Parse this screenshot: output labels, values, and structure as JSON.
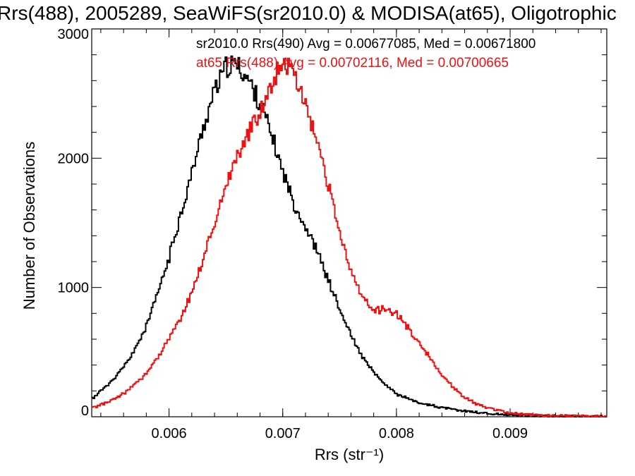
{
  "chart_data": {
    "type": "line",
    "title": "Rrs(488), 2005289, SeaWiFS(sr2010.0) & MODISA(at65), Oligotrophic",
    "xlabel": "Rrs (str⁻¹)",
    "ylabel": "Number of Observations",
    "xlim": [
      0.00532,
      0.00985
    ],
    "ylim": [
      0,
      3000
    ],
    "x_ticks": [
      0.006,
      0.007,
      0.008,
      0.009
    ],
    "x_tick_labels": [
      "0.006",
      "0.007",
      "0.008",
      "0.009"
    ],
    "y_ticks": [
      0,
      1000,
      2000,
      3000
    ],
    "y_tick_labels": [
      "0",
      "1000",
      "2000",
      "3000"
    ],
    "grid": false,
    "legend_position": "top-right",
    "x": [
      0.0053,
      0.0054,
      0.0055,
      0.0056,
      0.0057,
      0.0058,
      0.0059,
      0.006,
      0.0061,
      0.0062,
      0.0063,
      0.0064,
      0.0065,
      0.0066,
      0.0067,
      0.0068,
      0.0069,
      0.007,
      0.0071,
      0.0072,
      0.0073,
      0.0074,
      0.0075,
      0.0076,
      0.0077,
      0.0078,
      0.0079,
      0.008,
      0.0081,
      0.0082,
      0.0083,
      0.0084,
      0.0085,
      0.0086,
      0.0087,
      0.0088,
      0.0089,
      0.009,
      0.0091,
      0.0092,
      0.0093,
      0.0094,
      0.0095,
      0.0096,
      0.0097,
      0.0098
    ],
    "series": [
      {
        "name": "sr2010.0 Rrs(490) Avg = 0.00677085, Med = 0.00671800",
        "color": "#000000",
        "values": [
          120,
          200,
          280,
          380,
          520,
          700,
          950,
          1230,
          1560,
          1880,
          2230,
          2520,
          2700,
          2730,
          2600,
          2430,
          2180,
          1900,
          1650,
          1470,
          1290,
          1060,
          830,
          630,
          460,
          340,
          250,
          180,
          140,
          110,
          90,
          70,
          55,
          45,
          35,
          25,
          20,
          15,
          12,
          10,
          8,
          6,
          5,
          4,
          3,
          2
        ]
      },
      {
        "name": "at65 Rrs(488) Avg = 0.00702116, Med = 0.00700665",
        "color": "#ee1111",
        "values": [
          60,
          90,
          130,
          180,
          250,
          340,
          460,
          600,
          760,
          960,
          1220,
          1500,
          1790,
          2020,
          2190,
          2370,
          2570,
          2760,
          2650,
          2420,
          2110,
          1790,
          1420,
          1130,
          920,
          820,
          840,
          800,
          690,
          570,
          450,
          320,
          230,
          150,
          100,
          70,
          45,
          30,
          20,
          15,
          10,
          8,
          6,
          5,
          4,
          3
        ]
      }
    ]
  }
}
